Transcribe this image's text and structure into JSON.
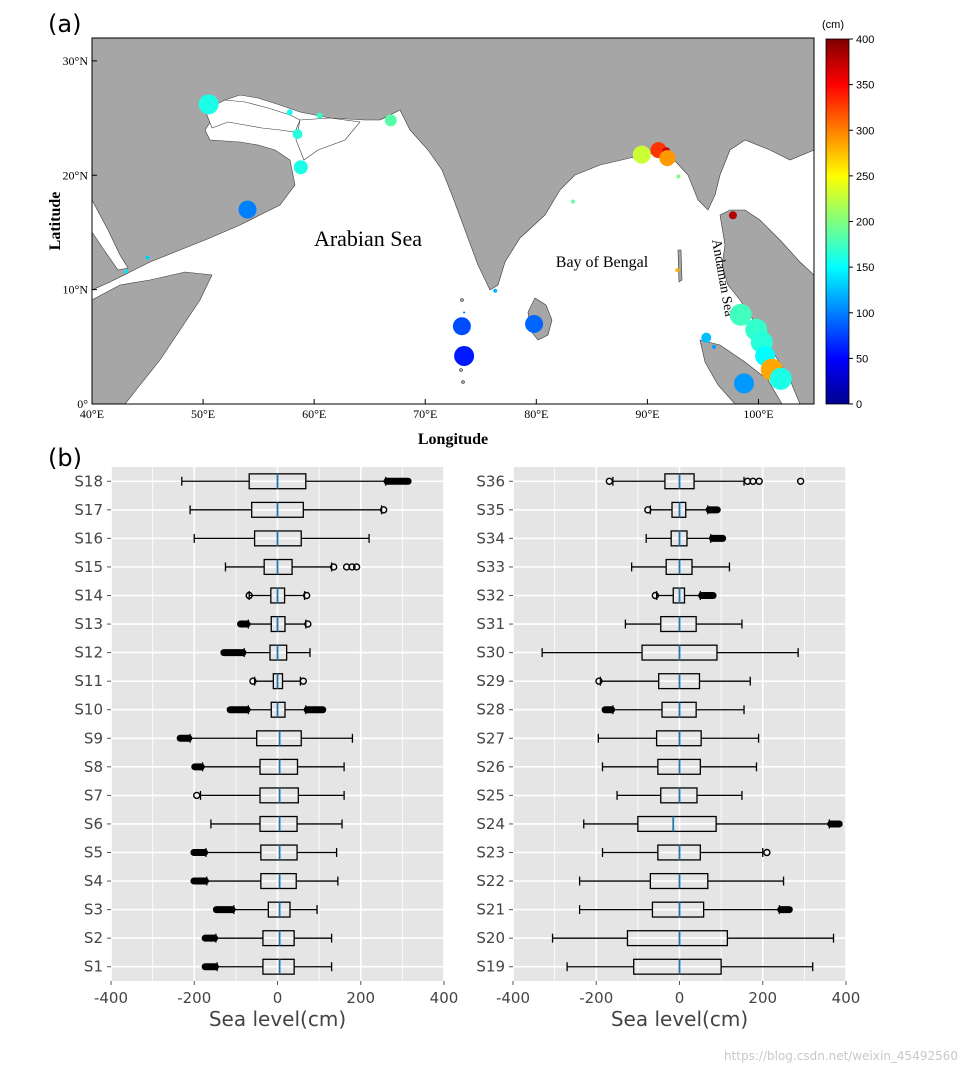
{
  "panels": {
    "a": "(a)",
    "b": "(b)"
  },
  "watermark": "https://blog.csdn.net/weixin_45492560",
  "chart_data": [
    {
      "type": "scatter",
      "subtype": "bubble-map",
      "xlabel": "Longitude",
      "ylabel": "Latitude",
      "xlim": [
        40,
        105
      ],
      "ylim": [
        0,
        32
      ],
      "x_ticks": [
        "40°E",
        "50°E",
        "60°E",
        "70°E",
        "80°E",
        "90°E",
        "100°E"
      ],
      "y_ticks": [
        "0°",
        "10°N",
        "20°N",
        "30°N"
      ],
      "region_labels": [
        "Arabian Sea",
        "Bay of Bengal",
        "Andaman Sea"
      ],
      "colorbar": {
        "unit": "(cm)",
        "min": 0,
        "max": 400,
        "ticks": [
          "0",
          "50",
          "100",
          "150",
          "200",
          "250",
          "300",
          "350",
          "400"
        ]
      },
      "points": [
        {
          "lon": 50.5,
          "lat": 26.2,
          "value": 160,
          "size": 10
        },
        {
          "lon": 58.5,
          "lat": 23.6,
          "value": 165,
          "size": 5
        },
        {
          "lon": 57.8,
          "lat": 25.5,
          "value": 155,
          "size": 3
        },
        {
          "lon": 60.5,
          "lat": 25.2,
          "value": 170,
          "size": 3
        },
        {
          "lon": 66.9,
          "lat": 24.8,
          "value": 185,
          "size": 6
        },
        {
          "lon": 58.8,
          "lat": 20.7,
          "value": 160,
          "size": 7
        },
        {
          "lon": 54.0,
          "lat": 17.0,
          "value": 100,
          "size": 9
        },
        {
          "lon": 45.0,
          "lat": 12.8,
          "value": 130,
          "size": 2
        },
        {
          "lon": 43.1,
          "lat": 11.6,
          "value": 140,
          "size": 2
        },
        {
          "lon": 73.3,
          "lat": 6.8,
          "value": 80,
          "size": 9
        },
        {
          "lon": 73.5,
          "lat": 4.2,
          "value": 60,
          "size": 10
        },
        {
          "lon": 76.3,
          "lat": 9.9,
          "value": 120,
          "size": 2
        },
        {
          "lon": 79.8,
          "lat": 7.0,
          "value": 90,
          "size": 9
        },
        {
          "lon": 83.3,
          "lat": 17.7,
          "value": 190,
          "size": 2
        },
        {
          "lon": 89.5,
          "lat": 21.8,
          "value": 230,
          "size": 9
        },
        {
          "lon": 91.0,
          "lat": 22.2,
          "value": 330,
          "size": 8
        },
        {
          "lon": 91.7,
          "lat": 22.1,
          "value": 370,
          "size": 4
        },
        {
          "lon": 91.8,
          "lat": 21.5,
          "value": 290,
          "size": 8
        },
        {
          "lon": 92.8,
          "lat": 19.9,
          "value": 200,
          "size": 2
        },
        {
          "lon": 97.7,
          "lat": 16.5,
          "value": 380,
          "size": 4
        },
        {
          "lon": 92.7,
          "lat": 11.7,
          "value": 280,
          "size": 2
        },
        {
          "lon": 98.4,
          "lat": 7.8,
          "value": 175,
          "size": 11
        },
        {
          "lon": 99.8,
          "lat": 6.5,
          "value": 170,
          "size": 11
        },
        {
          "lon": 100.3,
          "lat": 5.4,
          "value": 165,
          "size": 11
        },
        {
          "lon": 100.6,
          "lat": 4.2,
          "value": 150,
          "size": 10
        },
        {
          "lon": 101.2,
          "lat": 3.0,
          "value": 285,
          "size": 11
        },
        {
          "lon": 102.0,
          "lat": 2.2,
          "value": 160,
          "size": 11
        },
        {
          "lon": 95.3,
          "lat": 5.8,
          "value": 125,
          "size": 5
        },
        {
          "lon": 96.0,
          "lat": 5.0,
          "value": 110,
          "size": 2
        },
        {
          "lon": 98.7,
          "lat": 1.8,
          "value": 110,
          "size": 10
        },
        {
          "lon": 73.5,
          "lat": 8.0,
          "value": 90,
          "size": 1
        }
      ]
    },
    {
      "type": "boxplot",
      "orientation": "horizontal",
      "xlabel": "Sea level(cm)",
      "xlim": [
        -400,
        400
      ],
      "x_ticks": [
        "-400",
        "-200",
        "0",
        "200",
        "400"
      ],
      "categories": [
        "S18",
        "S17",
        "S16",
        "S15",
        "S14",
        "S13",
        "S12",
        "S11",
        "S10",
        "S9",
        "S8",
        "S7",
        "S6",
        "S5",
        "S4",
        "S3",
        "S2",
        "S1"
      ],
      "boxes": [
        {
          "label": "S18",
          "whislo": -230,
          "q1": -68,
          "med": 0,
          "q3": 68,
          "whishi": 260,
          "fliers": [
            [
              262,
              315
            ]
          ]
        },
        {
          "label": "S17",
          "whislo": -210,
          "q1": -62,
          "med": 0,
          "q3": 62,
          "whishi": 250,
          "fliers": [
            [
              250,
              260
            ]
          ]
        },
        {
          "label": "S16",
          "whislo": -200,
          "q1": -55,
          "med": 0,
          "q3": 57,
          "whishi": 220,
          "fliers": []
        },
        {
          "label": "S15",
          "whislo": -125,
          "q1": -32,
          "med": 0,
          "q3": 35,
          "whishi": 130,
          "fliers": [
            [
              132,
              138
            ],
            [
              160,
              172
            ],
            [
              178,
              180
            ],
            [
              185,
              195
            ]
          ]
        },
        {
          "label": "S14",
          "whislo": -68,
          "q1": -16,
          "med": 0,
          "q3": 17,
          "whishi": 65,
          "fliers": [
            [
              -72,
              -64
            ],
            [
              68,
              72
            ]
          ]
        },
        {
          "label": "S13",
          "whislo": -70,
          "q1": -15,
          "med": 0,
          "q3": 18,
          "whishi": 68,
          "fliers": [
            [
              -90,
              -72
            ],
            [
              70,
              76
            ]
          ]
        },
        {
          "label": "S12",
          "whislo": -80,
          "q1": -18,
          "med": 0,
          "q3": 22,
          "whishi": 78,
          "fliers": [
            [
              -130,
              -82
            ]
          ]
        },
        {
          "label": "S11",
          "whislo": -55,
          "q1": -10,
          "med": 0,
          "q3": 12,
          "whishi": 55,
          "fliers": [
            [
              -62,
              -56
            ],
            [
              56,
              68
            ]
          ]
        },
        {
          "label": "S10",
          "whislo": -70,
          "q1": -15,
          "med": 0,
          "q3": 18,
          "whishi": 68,
          "fliers": [
            [
              -115,
              -72
            ],
            [
              70,
              110
            ]
          ]
        },
        {
          "label": "S9",
          "whislo": -210,
          "q1": -50,
          "med": 5,
          "q3": 57,
          "whishi": 180,
          "fliers": [
            [
              -235,
              -212
            ]
          ]
        },
        {
          "label": "S8",
          "whislo": -180,
          "q1": -42,
          "med": 5,
          "q3": 48,
          "whishi": 160,
          "fliers": [
            [
              -200,
              -182
            ]
          ]
        },
        {
          "label": "S7",
          "whislo": -185,
          "q1": -42,
          "med": 5,
          "q3": 50,
          "whishi": 160,
          "fliers": [
            [
              -200,
              -188
            ]
          ]
        },
        {
          "label": "S6",
          "whislo": -160,
          "q1": -42,
          "med": 5,
          "q3": 47,
          "whishi": 155,
          "fliers": []
        },
        {
          "label": "S5",
          "whislo": -172,
          "q1": -40,
          "med": 5,
          "q3": 47,
          "whishi": 142,
          "fliers": [
            [
              -202,
              -174
            ]
          ]
        },
        {
          "label": "S4",
          "whislo": -170,
          "q1": -40,
          "med": 5,
          "q3": 45,
          "whishi": 145,
          "fliers": [
            [
              -202,
              -172
            ]
          ]
        },
        {
          "label": "S3",
          "whislo": -105,
          "q1": -22,
          "med": 5,
          "q3": 30,
          "whishi": 95,
          "fliers": [
            [
              -148,
              -108
            ]
          ]
        },
        {
          "label": "S2",
          "whislo": -148,
          "q1": -35,
          "med": 5,
          "q3": 40,
          "whishi": 130,
          "fliers": [
            [
              -175,
              -150
            ]
          ]
        },
        {
          "label": "S1",
          "whislo": -145,
          "q1": -35,
          "med": 5,
          "q3": 40,
          "whishi": 130,
          "fliers": [
            [
              -175,
              -148
            ]
          ]
        }
      ]
    },
    {
      "type": "boxplot",
      "orientation": "horizontal",
      "xlabel": "Sea level(cm)",
      "xlim": [
        -400,
        400
      ],
      "x_ticks": [
        "-400",
        "-200",
        "0",
        "200",
        "400"
      ],
      "categories": [
        "S36",
        "S35",
        "S34",
        "S33",
        "S32",
        "S31",
        "S30",
        "S29",
        "S28",
        "S27",
        "S26",
        "S25",
        "S24",
        "S23",
        "S22",
        "S21",
        "S20",
        "S19"
      ],
      "boxes": [
        {
          "label": "S36",
          "whislo": -160,
          "q1": -35,
          "med": 0,
          "q3": 35,
          "whishi": 155,
          "fliers": [
            [
              -175,
              -162
            ],
            [
              157,
              170
            ],
            [
              175,
              178
            ],
            [
              190,
              193
            ],
            [
              290,
              292
            ]
          ]
        },
        {
          "label": "S35",
          "whislo": -70,
          "q1": -18,
          "med": 0,
          "q3": 15,
          "whishi": 68,
          "fliers": [
            [
              -80,
              -72
            ],
            [
              70,
              92
            ]
          ]
        },
        {
          "label": "S34",
          "whislo": -80,
          "q1": -20,
          "med": 0,
          "q3": 18,
          "whishi": 75,
          "fliers": [
            [
              78,
              105
            ]
          ]
        },
        {
          "label": "S33",
          "whislo": -115,
          "q1": -32,
          "med": 0,
          "q3": 30,
          "whishi": 120,
          "fliers": []
        },
        {
          "label": "S32",
          "whislo": -55,
          "q1": -15,
          "med": 0,
          "q3": 12,
          "whishi": 50,
          "fliers": [
            [
              -60,
              -56
            ],
            [
              52,
              82
            ]
          ]
        },
        {
          "label": "S31",
          "whislo": -130,
          "q1": -45,
          "med": 0,
          "q3": 40,
          "whishi": 150,
          "fliers": []
        },
        {
          "label": "S30",
          "whislo": -330,
          "q1": -90,
          "med": 0,
          "q3": 90,
          "whishi": 285,
          "fliers": []
        },
        {
          "label": "S29",
          "whislo": -190,
          "q1": -50,
          "med": 0,
          "q3": 48,
          "whishi": 170,
          "fliers": [
            [
              -195,
              -192
            ]
          ]
        },
        {
          "label": "S28",
          "whislo": -160,
          "q1": -42,
          "med": 0,
          "q3": 40,
          "whishi": 155,
          "fliers": [
            [
              -180,
              -162
            ]
          ]
        },
        {
          "label": "S27",
          "whislo": -195,
          "q1": -55,
          "med": 0,
          "q3": 52,
          "whishi": 190,
          "fliers": []
        },
        {
          "label": "S26",
          "whislo": -185,
          "q1": -52,
          "med": 0,
          "q3": 50,
          "whishi": 185,
          "fliers": []
        },
        {
          "label": "S25",
          "whislo": -150,
          "q1": -45,
          "med": 0,
          "q3": 42,
          "whishi": 150,
          "fliers": []
        },
        {
          "label": "S24",
          "whislo": -230,
          "q1": -100,
          "med": -15,
          "q3": 88,
          "whishi": 360,
          "fliers": [
            [
              362,
              385
            ]
          ]
        },
        {
          "label": "S23",
          "whislo": -185,
          "q1": -52,
          "med": 0,
          "q3": 50,
          "whishi": 200,
          "fliers": [
            [
              205,
              215
            ]
          ]
        },
        {
          "label": "S22",
          "whislo": -240,
          "q1": -70,
          "med": 0,
          "q3": 68,
          "whishi": 250,
          "fliers": []
        },
        {
          "label": "S21",
          "whislo": -240,
          "q1": -65,
          "med": 0,
          "q3": 58,
          "whishi": 240,
          "fliers": [
            [
              242,
              265
            ]
          ]
        },
        {
          "label": "S20",
          "whislo": -305,
          "q1": -125,
          "med": 0,
          "q3": 115,
          "whishi": 370,
          "fliers": []
        },
        {
          "label": "S19",
          "whislo": -270,
          "q1": -110,
          "med": 0,
          "q3": 100,
          "whishi": 320,
          "fliers": []
        }
      ]
    }
  ]
}
